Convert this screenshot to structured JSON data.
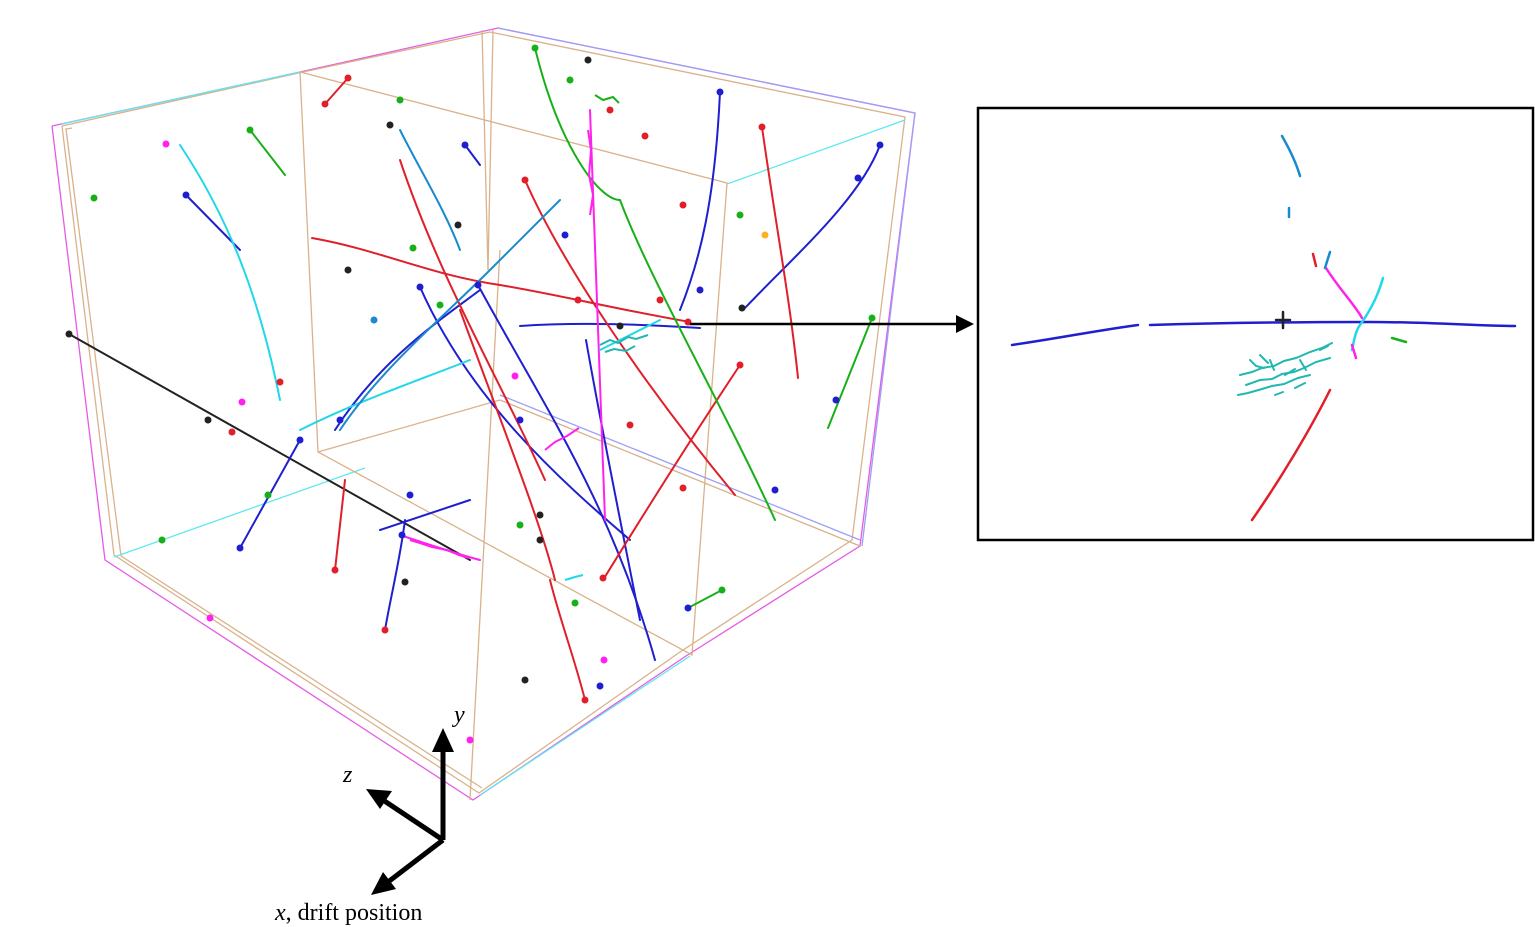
{
  "axes": {
    "y_label": "y",
    "z_label": "z",
    "x_label_var": "x",
    "x_label_rest": ", drift position"
  },
  "colors": {
    "outer_box": "#e55be5",
    "inner_box": "#d9b28a",
    "side_box": "#9aa0f5",
    "cyan_edge": "#5fe8f0",
    "inset_frame": "#000000",
    "track_palette": [
      "#1f1fd0",
      "#e01f2a",
      "#18b018",
      "#ff22ee",
      "#20d8e8",
      "#222222",
      "#1a8ad0",
      "#ffb020"
    ]
  },
  "scene": {
    "description_free": true,
    "icon": "particle-track-event-display"
  }
}
